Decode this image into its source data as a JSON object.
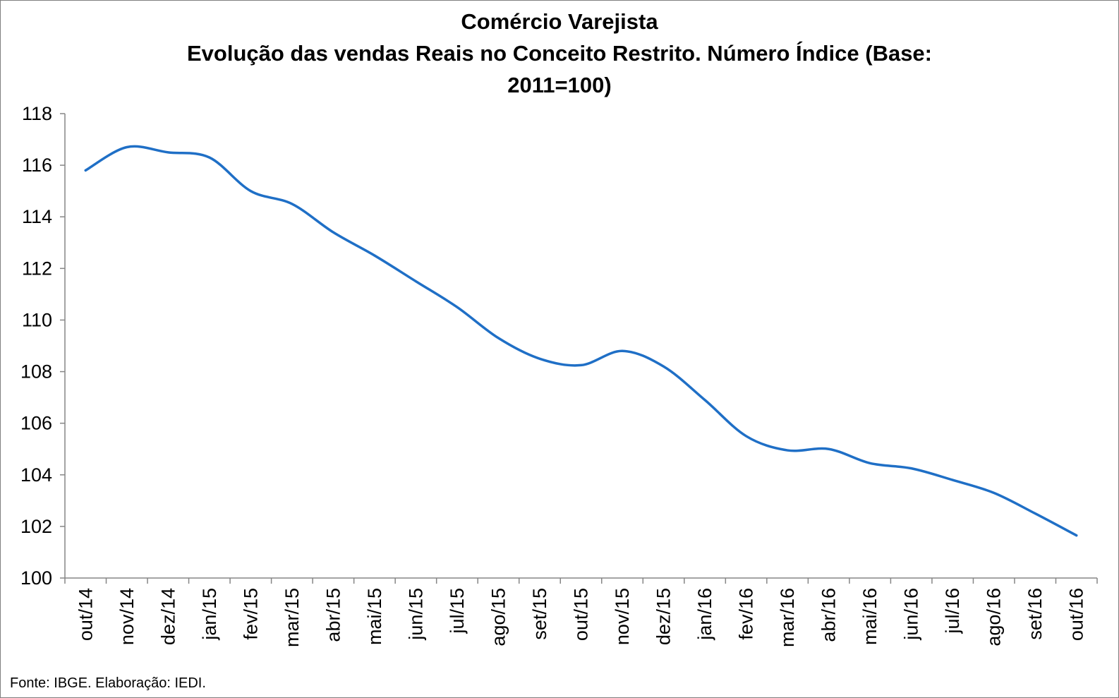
{
  "chart_data": {
    "type": "line",
    "title_lines": [
      "Comércio Varejista",
      "Evolução das vendas Reais no Conceito Restrito. Número Índice (Base:",
      "2011=100)"
    ],
    "categories": [
      "out/14",
      "nov/14",
      "dez/14",
      "jan/15",
      "fev/15",
      "mar/15",
      "abr/15",
      "mai/15",
      "jun/15",
      "jul/15",
      "ago/15",
      "set/15",
      "out/15",
      "nov/15",
      "dez/15",
      "jan/16",
      "fev/16",
      "mar/16",
      "abr/16",
      "mai/16",
      "jun/16",
      "jul/16",
      "ago/16",
      "set/16",
      "out/16"
    ],
    "series": [
      {
        "values": [
          115.8,
          116.7,
          116.5,
          116.3,
          115.0,
          114.5,
          113.4,
          112.5,
          111.5,
          110.5,
          109.3,
          108.5,
          108.25,
          108.8,
          108.2,
          106.9,
          105.5,
          104.95,
          105.0,
          104.45,
          104.25,
          103.8,
          103.3,
          102.5,
          101.65
        ],
        "color": "#1f6fc6"
      }
    ],
    "ylim": [
      100,
      118
    ],
    "yticks": [
      100,
      102,
      104,
      106,
      108,
      110,
      112,
      114,
      116,
      118
    ],
    "grid": false,
    "legend": "none"
  },
  "source": "Fonte: IBGE. Elaboração: IEDI."
}
